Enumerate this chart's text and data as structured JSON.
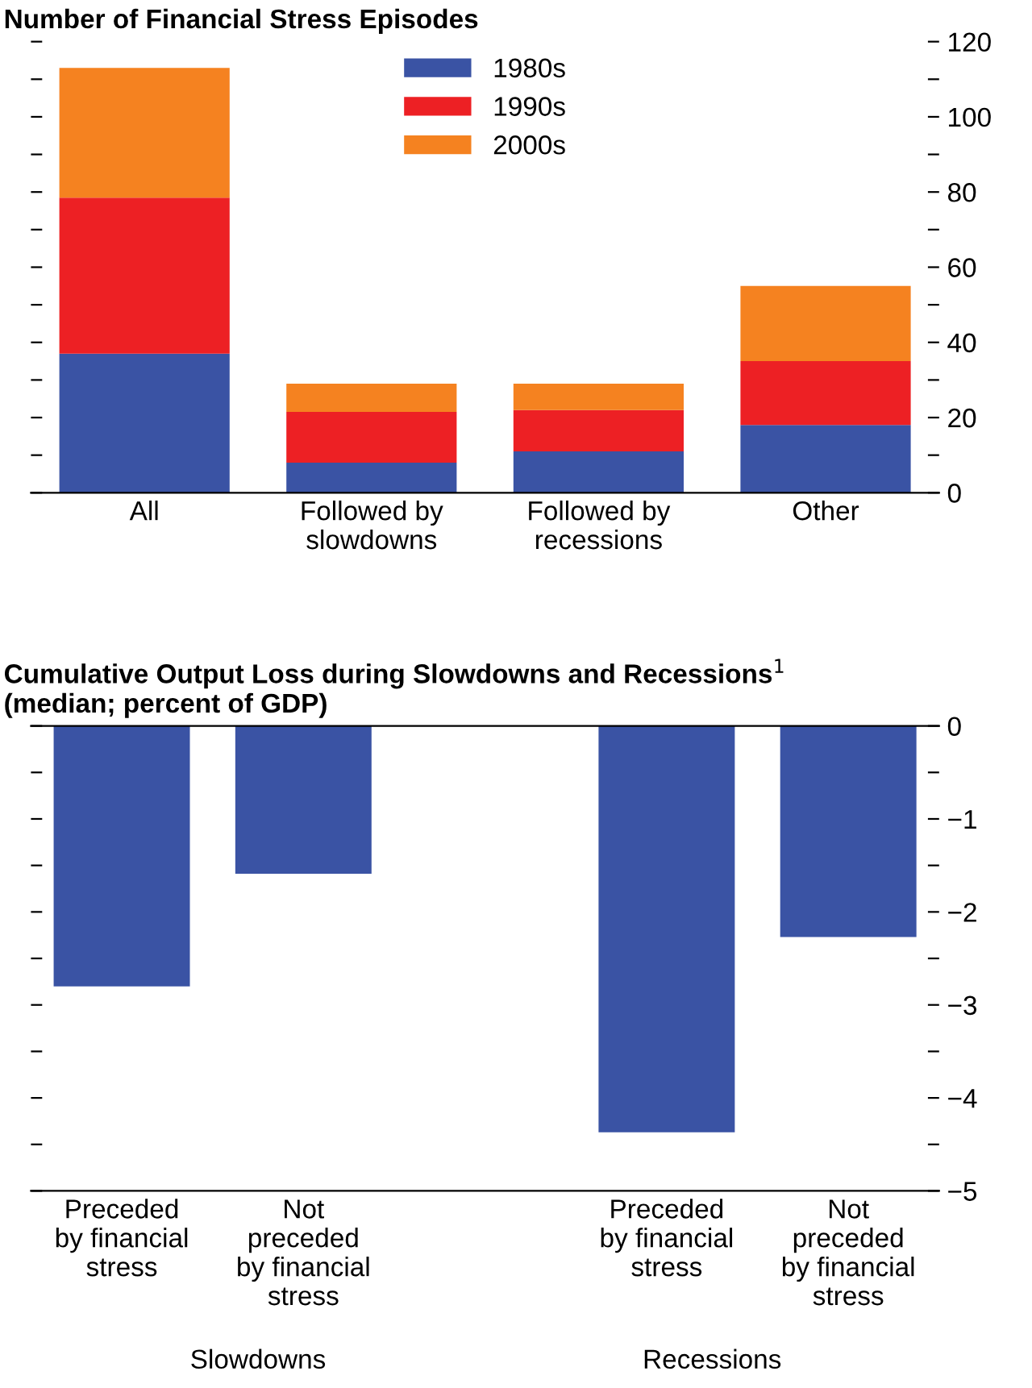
{
  "chart_data": [
    {
      "type": "bar",
      "title": "Number of Financial Stress Episodes",
      "stacked": true,
      "legend": "top",
      "categories": [
        "All",
        "Followed by\nslowdowns",
        "Followed by\nrecessions",
        "Other"
      ],
      "series": [
        {
          "name": "1980s",
          "color": "#3a53a4",
          "values": [
            37,
            8,
            11,
            18
          ]
        },
        {
          "name": "1990s",
          "color": "#ed2024",
          "values": [
            41.5,
            13.5,
            11,
            17
          ]
        },
        {
          "name": "2000s",
          "color": "#f58220",
          "values": [
            34.5,
            7.5,
            7,
            20
          ]
        }
      ],
      "ylim": [
        0,
        120
      ],
      "yticks": [
        0,
        {
          "value": 10,
          "label": null
        },
        20,
        {
          "value": 30,
          "label": null
        },
        40,
        {
          "value": 50,
          "label": null
        },
        60,
        {
          "value": 70,
          "label": null
        },
        80,
        {
          "value": 90,
          "label": null
        },
        100,
        {
          "value": 110,
          "label": null
        },
        120
      ]
    },
    {
      "type": "bar",
      "title": "Cumulative Output Loss during Slowdowns and Recessions$^{1}$\n(median; percent of GDP)",
      "categories": [
        "Preceded\nby financial\nstress",
        "Not\npreceded\nby financial\nstress",
        null,
        "Preceded\nby financial\nstress",
        "Not\npreceded\nby financial\nstress"
      ],
      "values": [
        -2.8,
        -1.59,
        null,
        -4.37,
        -2.27
      ],
      "color": "#3a53a4",
      "annotations": [
        "Slowdowns",
        "Recessions"
      ],
      "ylim": [
        -5,
        0
      ],
      "yticks": [
        0,
        {
          "value": -0.5,
          "label": null
        },
        {
          "value": -1,
          "label": "−1"
        },
        {
          "value": -1.5,
          "label": null
        },
        {
          "value": -2,
          "label": "−2"
        },
        {
          "value": -2.5,
          "label": null
        },
        {
          "value": -3,
          "label": "−3"
        },
        {
          "value": -3.5,
          "label": null
        },
        {
          "value": -4,
          "label": "−4"
        },
        {
          "value": -4.5,
          "label": null
        },
        {
          "value": -5,
          "label": "−5"
        }
      ]
    }
  ]
}
